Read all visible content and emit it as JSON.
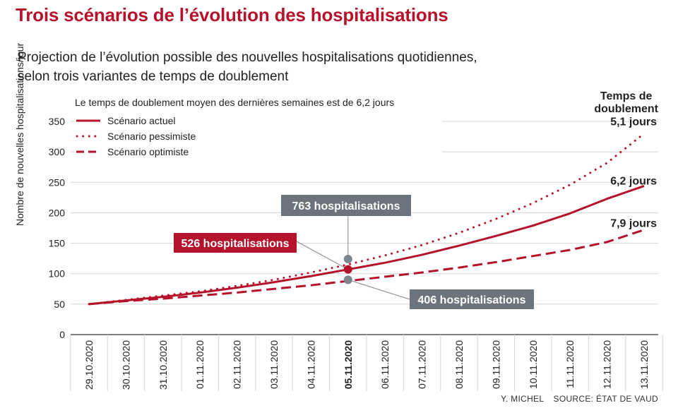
{
  "header": {
    "title": "Trois scénarios de l’évolution des hospitalisations",
    "subtitle_line1": "Projection de l’évolution possible des nouvelles hospitalisations quotidiennes,",
    "subtitle_line2": "selon trois variantes de temps de doublement",
    "note": "Le temps de doublement moyen des dernières semaines est de 6,2 jours"
  },
  "colors": {
    "accent": "#b5132b",
    "annotation_grey": "#6b747c",
    "grid": "#d4d4d4"
  },
  "right_header": {
    "line1": "Temps de",
    "line2": "doublement"
  },
  "footer": {
    "author": "Y. MICHEL",
    "source": "SOURCE: ÉTAT DE VAUD"
  },
  "chart_data": {
    "type": "line",
    "ylabel": "Nombre de nouvelles hospitalisations/jour",
    "ylim": [
      0,
      350
    ],
    "yticks": [
      0,
      50,
      100,
      150,
      200,
      250,
      300,
      350
    ],
    "x": [
      "29.10.2020",
      "30.10.2020",
      "31.10.2020",
      "01.11.2020",
      "02.11.2020",
      "03.11.2020",
      "04.11.2020",
      "05.11.2020",
      "06.11.2020",
      "07.11.2020",
      "08.11.2020",
      "09.11.2020",
      "10.11.2020",
      "11.11.2020",
      "12.11.2020",
      "13.11.2020"
    ],
    "highlight_x": "05.11.2020",
    "grid": true,
    "legend": "top-left",
    "series": [
      {
        "name": "Scénario actuel",
        "style": "solid",
        "end_label": "6,2 jours",
        "values": [
          50,
          56,
          62,
          69,
          77,
          86,
          96,
          107,
          118,
          131,
          146,
          162,
          179,
          199,
          223,
          244
        ]
      },
      {
        "name": "Scénario pessimiste",
        "style": "dotted",
        "end_label": "5,1 jours",
        "values": [
          50,
          57,
          64,
          71,
          80,
          90,
          102,
          115,
          130,
          147,
          167,
          190,
          216,
          246,
          282,
          330
        ]
      },
      {
        "name": "Scénario optimiste",
        "style": "dashed",
        "end_label": "7,9 jours",
        "values": [
          50,
          55,
          59,
          64,
          69,
          75,
          81,
          88,
          95,
          102,
          110,
          119,
          129,
          139,
          152,
          172
        ]
      }
    ],
    "annotations": [
      {
        "text": "763 hospitalisations",
        "series": 1,
        "x": "05.11.2020",
        "value": 124,
        "style": "grey"
      },
      {
        "text": "526 hospitalisations",
        "series": 0,
        "x": "05.11.2020",
        "value": 107,
        "style": "red"
      },
      {
        "text": "406 hospitalisations",
        "series": 2,
        "x": "05.11.2020",
        "value": 90,
        "style": "grey"
      }
    ]
  }
}
